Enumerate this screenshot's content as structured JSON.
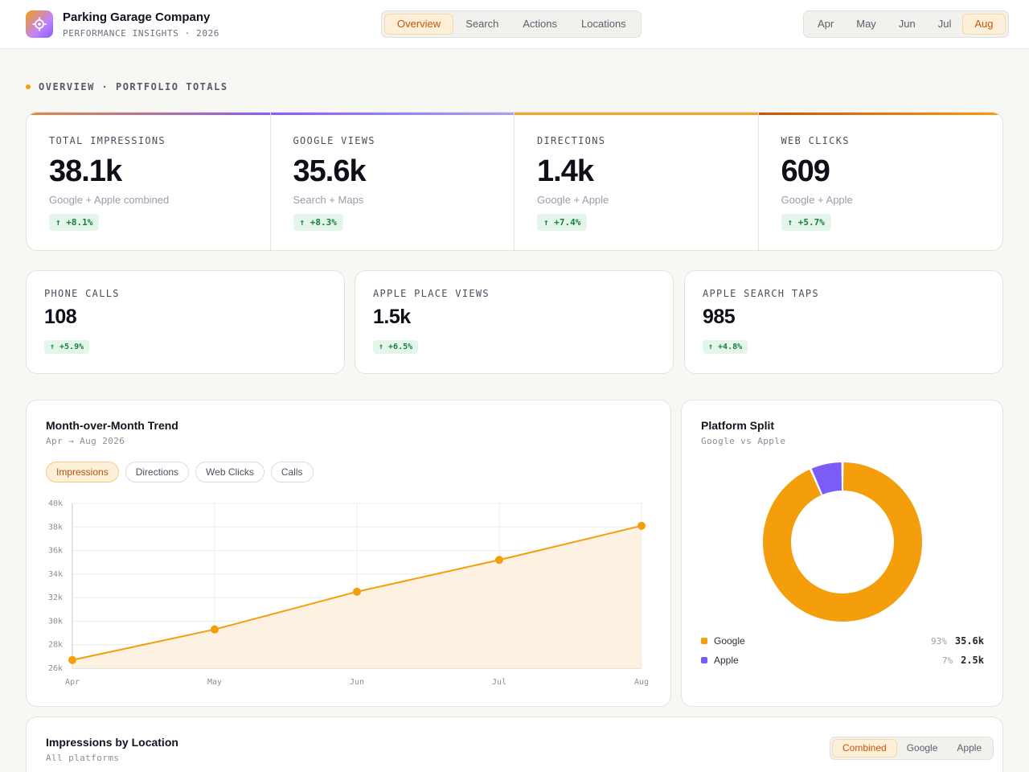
{
  "brand": {
    "title": "Parking Garage Company",
    "subtitle": "PERFORMANCE INSIGHTS · 2026",
    "logo_icon": "target-icon"
  },
  "nav": {
    "tabs": [
      "Overview",
      "Search",
      "Actions",
      "Locations"
    ],
    "active": "Overview"
  },
  "months": {
    "items": [
      "Apr",
      "May",
      "Jun",
      "Jul",
      "Aug"
    ],
    "active": "Aug"
  },
  "section": {
    "label": "OVERVIEW · PORTFOLIO TOTALS"
  },
  "kpis": [
    {
      "label": "TOTAL IMPRESSIONS",
      "value": "38.1k",
      "note": "Google + Apple combined",
      "delta": "↑ +8.1%",
      "accent": "#e08a3c"
    },
    {
      "label": "GOOGLE VIEWS",
      "value": "35.6k",
      "note": "Search + Maps",
      "delta": "↑ +8.3%",
      "accent": "#8b7cf6"
    },
    {
      "label": "DIRECTIONS",
      "value": "1.4k",
      "note": "Google + Apple",
      "delta": "↑ +7.4%",
      "accent": "#f5a524"
    },
    {
      "label": "WEB CLICKS",
      "value": "609",
      "note": "Google + Apple",
      "delta": "↑ +5.7%",
      "accent": "#d97706"
    }
  ],
  "small_kpis": [
    {
      "label": "PHONE CALLS",
      "value": "108",
      "delta": "↑ +5.9%"
    },
    {
      "label": "APPLE PLACE VIEWS",
      "value": "1.5k",
      "delta": "↑ +6.5%"
    },
    {
      "label": "APPLE SEARCH TAPS",
      "value": "985",
      "delta": "↑ +4.8%"
    }
  ],
  "trend": {
    "title": "Month-over-Month Trend",
    "subtitle": "Apr → Aug 2026",
    "chips": [
      "Impressions",
      "Directions",
      "Web Clicks",
      "Calls"
    ],
    "active_chip": "Impressions",
    "color": "#f59e0b"
  },
  "split": {
    "title": "Platform Split",
    "subtitle": "Google vs Apple",
    "legend": [
      {
        "name": "Google",
        "pct": "93%",
        "value": "35.6k",
        "color": "#f59e0b"
      },
      {
        "name": "Apple",
        "pct": "7%",
        "value": "2.5k",
        "color": "#7c5cf6"
      }
    ]
  },
  "location": {
    "title": "Impressions by Location",
    "subtitle": "All platforms",
    "toggle": [
      "Combined",
      "Google",
      "Apple"
    ],
    "active": "Combined"
  },
  "chart_data": [
    {
      "type": "area",
      "title": "Month-over-Month Trend",
      "categories": [
        "Apr",
        "May",
        "Jun",
        "Jul",
        "Aug"
      ],
      "series": [
        {
          "name": "Impressions",
          "values": [
            26700,
            29300,
            32500,
            35200,
            38100
          ]
        }
      ],
      "yticks": [
        "26k",
        "28k",
        "30k",
        "32k",
        "34k",
        "36k",
        "38k",
        "40k"
      ],
      "ylim": [
        26000,
        40000
      ],
      "grid": true
    },
    {
      "type": "pie",
      "title": "Platform Split",
      "categories": [
        "Google",
        "Apple"
      ],
      "values": [
        35.6,
        2.5
      ],
      "donut": true
    }
  ]
}
